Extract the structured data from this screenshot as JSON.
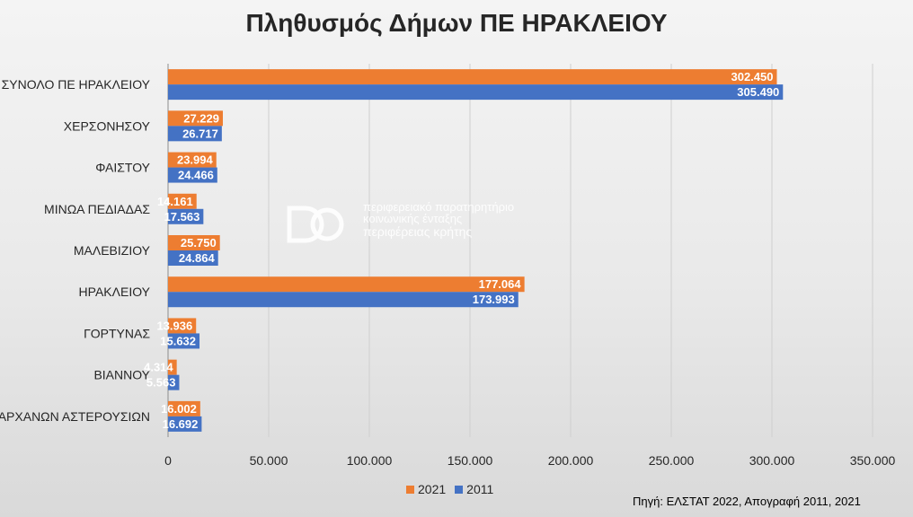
{
  "title": "Πληθυσμός Δήμων ΠΕ ΗΡΑΚΛΕΙΟΥ",
  "source": "Πηγή: ΕΛΣΤΑΤ 2022, Απογραφή 2011, 2021",
  "watermark": {
    "line1": "περιφερειακό παρατηρητήριο",
    "line2": "κοινωνικής ένταξης",
    "line3": "περιφέρειας κρήτης"
  },
  "colors": {
    "s2021": "#ED7D31",
    "s2011": "#4472C4"
  },
  "chart_data": {
    "type": "bar",
    "orientation": "horizontal",
    "title": "Πληθυσμός Δήμων ΠΕ ΗΡΑΚΛΕΙΟΥ",
    "categories": [
      "ΣΥΝΟΛΟ ΠΕ ΗΡΑΚΛΕΙΟΥ",
      "ΧΕΡΣΟΝΗΣΟΥ",
      "ΦΑΙΣΤΟΥ",
      "ΜΙΝΩΑ ΠΕΔΙΑΔΑΣ",
      "ΜΑΛΕΒΙΖΙΟΥ",
      "ΗΡΑΚΛΕΙΟΥ",
      "ΓΟΡΤΥΝΑΣ",
      "ΒΙΑΝΝΟΥ",
      "ΑΡΧΑΝΩΝ ΑΣΤΕΡΟΥΣΙΩΝ"
    ],
    "series": [
      {
        "name": "2021",
        "color": "#ED7D31",
        "values": [
          302450,
          27229,
          23994,
          14161,
          25750,
          177064,
          13936,
          4314,
          16002
        ],
        "labels": [
          "302.450",
          "27.229",
          "23.994",
          "14.161",
          "25.750",
          "177.064",
          "13.936",
          "4.314",
          "16.002"
        ]
      },
      {
        "name": "2011",
        "color": "#4472C4",
        "values": [
          305490,
          26717,
          24466,
          17563,
          24864,
          173993,
          15632,
          5563,
          16692
        ],
        "labels": [
          "305.490",
          "26.717",
          "24.466",
          "17.563",
          "24.864",
          "173.993",
          "15.632",
          "5.563",
          "16.692"
        ]
      }
    ],
    "xlim": [
      0,
      350000
    ],
    "ticks": [
      0,
      50000,
      100000,
      150000,
      200000,
      250000,
      300000,
      350000
    ],
    "tick_labels": [
      "0",
      "50.000",
      "100.000",
      "150.000",
      "200.000",
      "250.000",
      "300.000",
      "350.000"
    ],
    "grid": true,
    "legend": "bottom-center"
  }
}
